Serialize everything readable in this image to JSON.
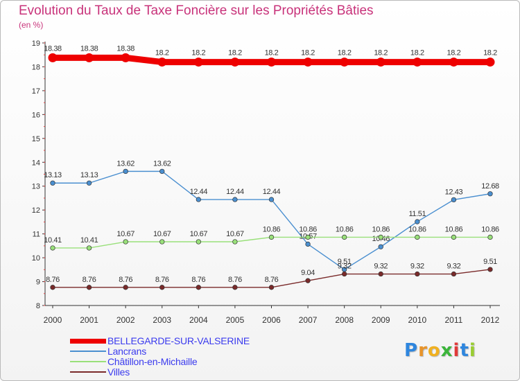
{
  "chart_data": {
    "type": "line",
    "title": "Evolution du Taux de Taxe Foncière sur les Propriétés Bâties",
    "subtitle": "(en %)",
    "xlabel": "",
    "ylabel": "",
    "ylim": [
      8,
      19
    ],
    "y_ticks": [
      8,
      9,
      10,
      11,
      12,
      13,
      14,
      15,
      16,
      17,
      18,
      19
    ],
    "categories": [
      "2000",
      "2001",
      "2002",
      "2003",
      "2004",
      "2005",
      "2006",
      "2007",
      "2008",
      "2009",
      "2010",
      "2011",
      "2012"
    ],
    "series": [
      {
        "name": "BELLEGARDE-SUR-VALSERINE",
        "color": "#ee0000",
        "values": [
          18.38,
          18.38,
          18.38,
          18.2,
          18.2,
          18.2,
          18.2,
          18.2,
          18.2,
          18.2,
          18.2,
          18.2,
          18.2
        ],
        "labels": [
          "18.38",
          "18.38",
          "18.38",
          "18.2",
          "18.2",
          "18.2",
          "18.2",
          "18.2",
          "18.2",
          "18.2",
          "18.2",
          "18.2",
          "18.2"
        ]
      },
      {
        "name": "Lancrans",
        "color": "#4a8fd0",
        "values": [
          13.13,
          13.13,
          13.62,
          13.62,
          12.44,
          12.44,
          12.44,
          10.57,
          9.51,
          10.46,
          11.51,
          12.43,
          12.68
        ],
        "labels": [
          "13.13",
          "13.13",
          "13.62",
          "13.62",
          "12.44",
          "12.44",
          "12.44",
          "10.57",
          "9.51",
          "10.46",
          "11.51",
          "12.43",
          "12.68"
        ]
      },
      {
        "name": "Châtillon-en-Michaille",
        "color": "#99e07a",
        "values": [
          10.41,
          10.41,
          10.67,
          10.67,
          10.67,
          10.67,
          10.86,
          10.86,
          10.86,
          10.86,
          10.86,
          10.86,
          10.86
        ],
        "labels": [
          "10.41",
          "10.41",
          "10.67",
          "10.67",
          "10.67",
          "10.67",
          "10.86",
          "10.86",
          "10.86",
          "10.86",
          "10.86",
          "10.86",
          "10.86"
        ]
      },
      {
        "name": "Villes",
        "color": "#7a2a2a",
        "values": [
          8.76,
          8.76,
          8.76,
          8.76,
          8.76,
          8.76,
          8.76,
          9.04,
          9.32,
          9.32,
          9.32,
          9.32,
          9.51
        ],
        "labels": [
          "8.76",
          "8.76",
          "8.76",
          "8.76",
          "8.76",
          "8.76",
          "8.76",
          "9.04",
          "9.32",
          "9.32",
          "9.32",
          "9.32",
          "9.51"
        ]
      }
    ]
  },
  "logo": {
    "letters": [
      "P",
      "r",
      "o",
      "x",
      "i",
      "t",
      "i"
    ],
    "colors": [
      "#2e86de",
      "#e8942a",
      "#f0b020",
      "#3bb53b",
      "#e03a3a",
      "#2e86de",
      "#9acd32"
    ]
  }
}
